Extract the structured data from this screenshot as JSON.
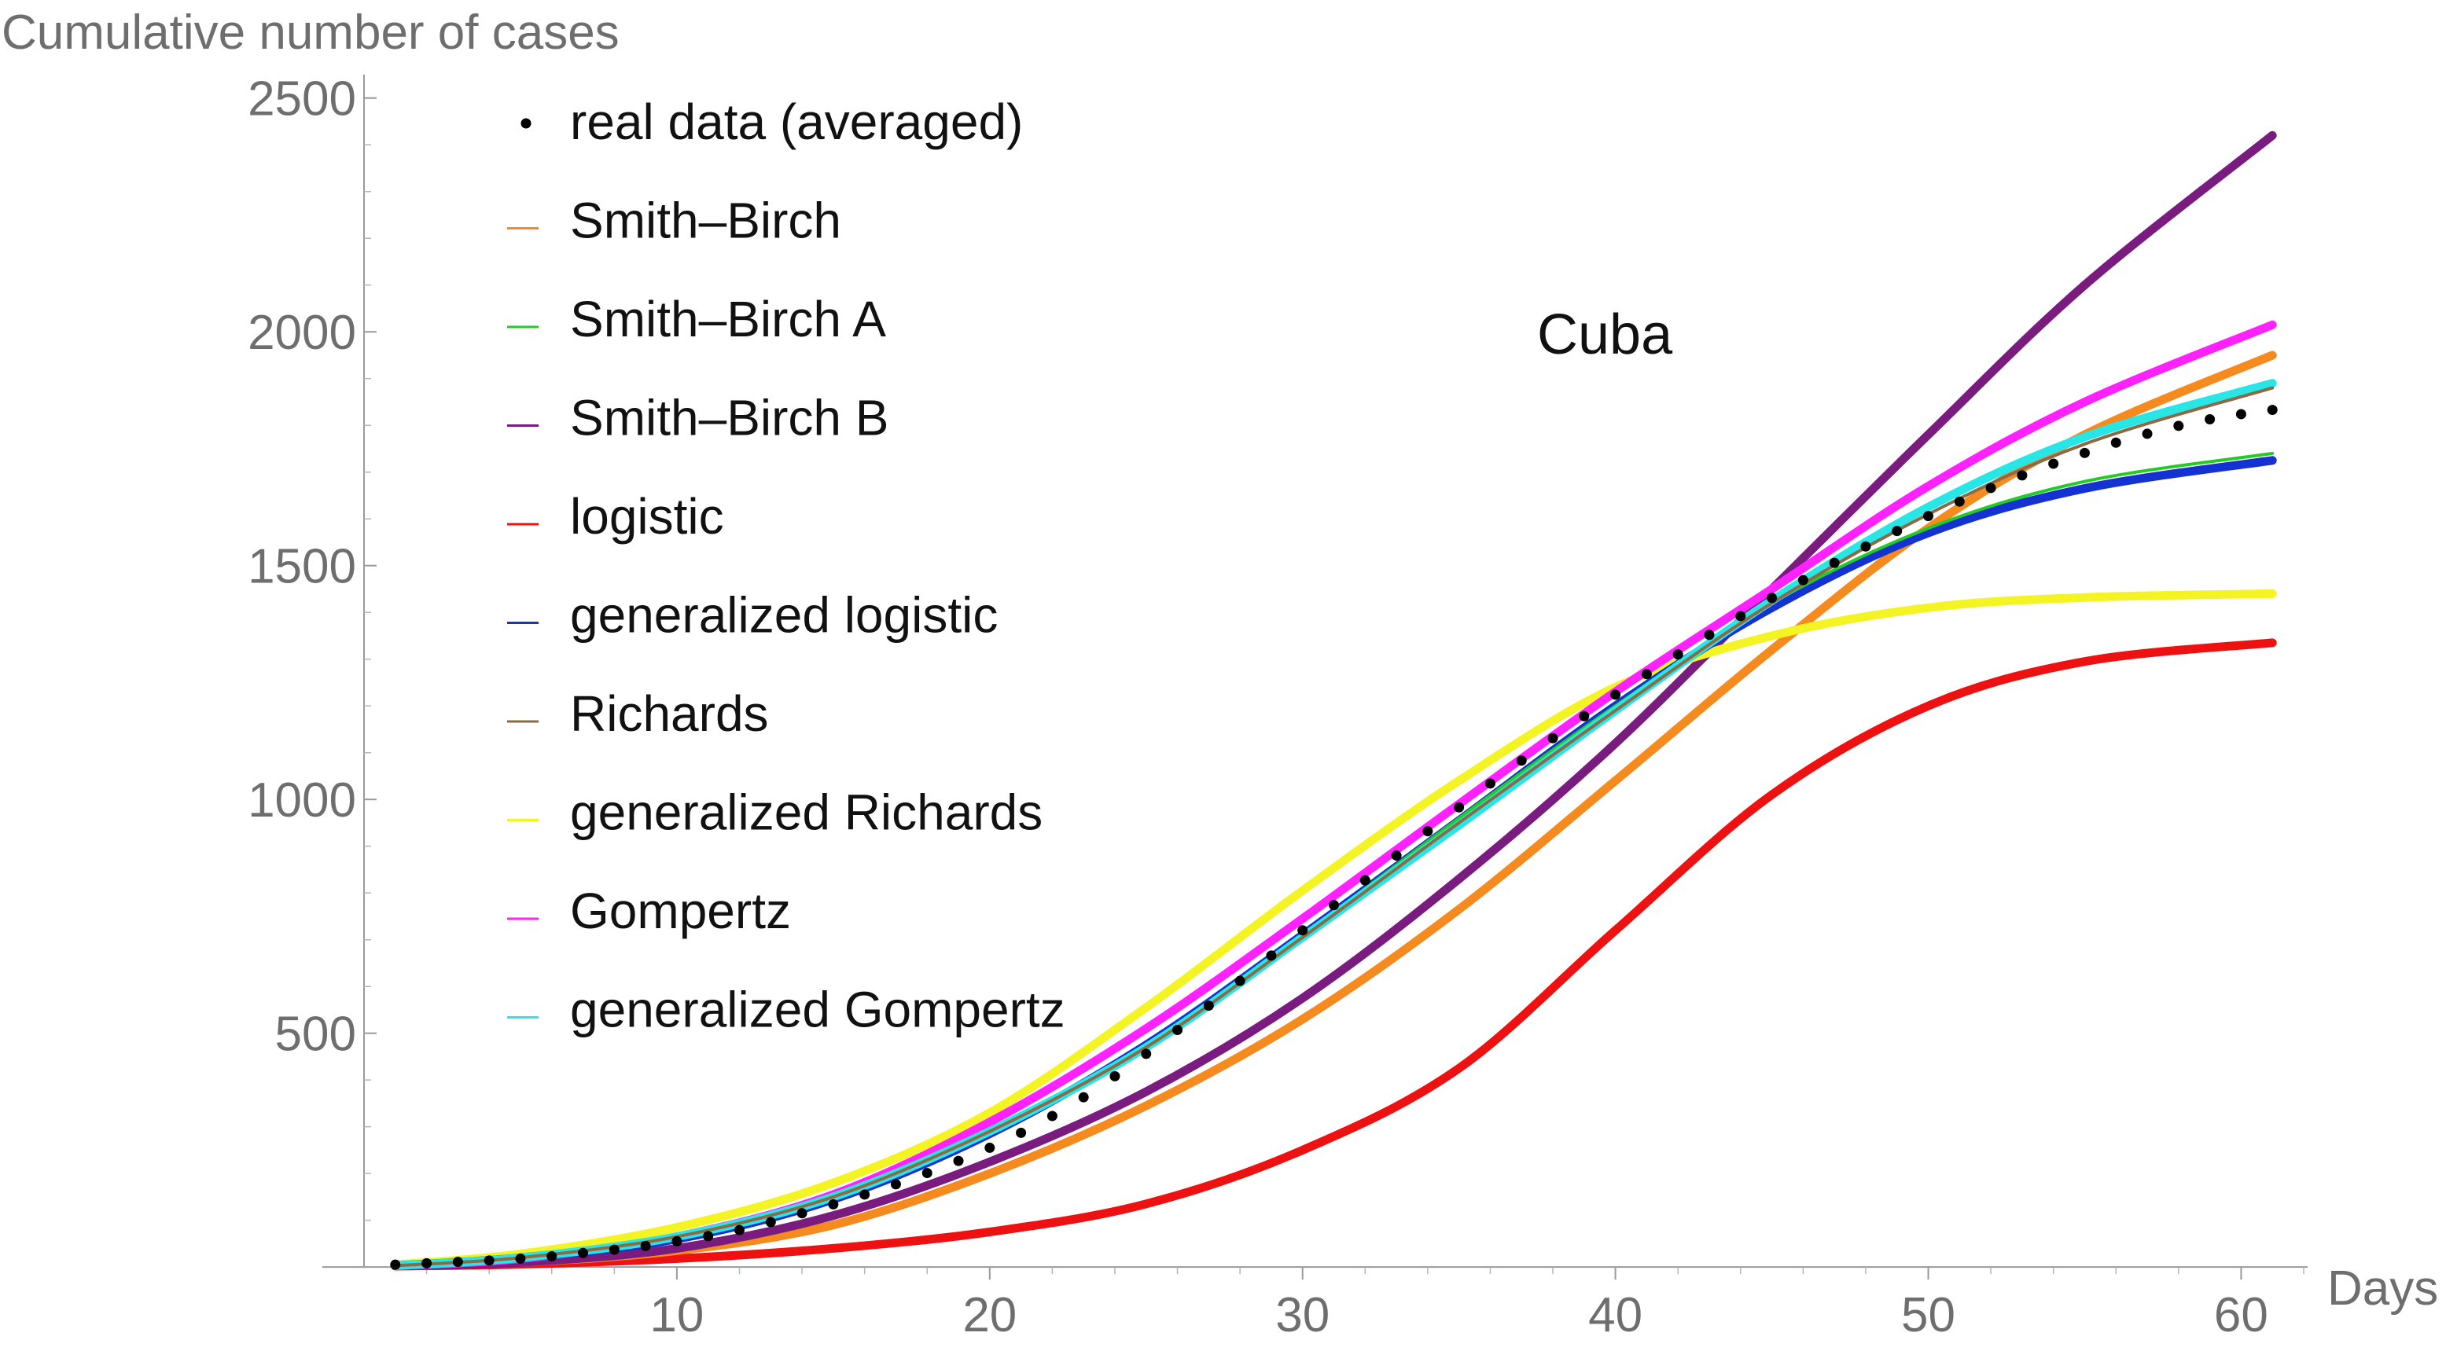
{
  "chart_data": {
    "type": "line",
    "title": "",
    "xlabel": "Days",
    "ylabel": "Cumulative number of cases",
    "annotation": "Cuba",
    "xlim": [
      0,
      62
    ],
    "ylim": [
      -30,
      2550
    ],
    "legend_position": "top-left",
    "x_ticks": [
      10,
      20,
      30,
      40,
      50,
      60
    ],
    "y_ticks": [
      500,
      1000,
      1500,
      2000,
      2500
    ],
    "grid": false,
    "colors": {
      "axis": "#9a9a9a",
      "tick_text": "#6e6e6e",
      "text": "#111111"
    },
    "data_series": {
      "name": "real data (averaged)",
      "color": "#000000",
      "x": [
        1,
        2,
        3,
        4,
        5,
        6,
        7,
        8,
        9,
        10,
        11,
        12,
        13,
        14,
        15,
        16,
        17,
        18,
        19,
        20,
        21,
        22,
        23,
        24,
        25,
        26,
        27,
        28,
        29,
        30,
        31,
        32,
        33,
        34,
        35,
        36,
        37,
        38,
        39,
        40,
        41,
        42,
        43,
        44,
        45,
        46,
        47,
        48,
        49,
        50,
        51,
        52,
        53,
        54,
        55,
        56,
        57,
        58,
        59,
        60,
        61
      ],
      "y": [
        5,
        8,
        11,
        14,
        18,
        23,
        30,
        37,
        45,
        55,
        66,
        79,
        96,
        115,
        134,
        155,
        177,
        201,
        227,
        255,
        287,
        323,
        363,
        408,
        456,
        507,
        559,
        612,
        666,
        720,
        774,
        827,
        880,
        932,
        983,
        1034,
        1083,
        1131,
        1178,
        1224,
        1268,
        1310,
        1352,
        1392,
        1431,
        1469,
        1506,
        1541,
        1574,
        1606,
        1637,
        1666,
        1693,
        1718,
        1741,
        1763,
        1782,
        1799,
        1813,
        1824,
        1833
      ]
    },
    "series": [
      {
        "name": "Smith–Birch",
        "color": "#f58a1f",
        "x": [
          1,
          5,
          10,
          15,
          20,
          25,
          30,
          35,
          40,
          45,
          50,
          55,
          61
        ],
        "y": [
          3,
          10,
          35,
          90,
          200,
          345,
          530,
          765,
          1040,
          1320,
          1580,
          1780,
          1950
        ]
      },
      {
        "name": "Smith–Birch A",
        "color": "#22cc22",
        "x": [
          1,
          5,
          10,
          15,
          20,
          25,
          30,
          35,
          40,
          45,
          50,
          55,
          61
        ],
        "y": [
          3,
          20,
          60,
          145,
          285,
          475,
          710,
          960,
          1200,
          1420,
          1580,
          1680,
          1740
        ]
      },
      {
        "name": "Smith–Birch B",
        "color": "#7a1c7f",
        "x": [
          1,
          5,
          10,
          15,
          20,
          25,
          30,
          35,
          40,
          45,
          50,
          55,
          61
        ],
        "y": [
          3,
          10,
          40,
          110,
          225,
          375,
          575,
          830,
          1120,
          1450,
          1780,
          2100,
          2420
        ]
      },
      {
        "name": "logistic",
        "color": "#ee1111",
        "x": [
          1,
          5,
          10,
          15,
          20,
          25,
          30,
          35,
          40,
          45,
          50,
          55,
          61
        ],
        "y": [
          2,
          6,
          18,
          40,
          75,
          135,
          250,
          425,
          720,
          1010,
          1200,
          1295,
          1335
        ]
      },
      {
        "name": "generalized logistic",
        "color": "#1432d2",
        "x": [
          1,
          5,
          10,
          15,
          20,
          25,
          30,
          35,
          40,
          45,
          50,
          55,
          61
        ],
        "y": [
          3,
          20,
          60,
          145,
          285,
          475,
          710,
          955,
          1200,
          1410,
          1570,
          1665,
          1725
        ]
      },
      {
        "name": "Richards",
        "color": "#8b6a45",
        "x": [
          1,
          5,
          10,
          15,
          20,
          25,
          30,
          35,
          40,
          45,
          50,
          55,
          61
        ],
        "y": [
          3,
          20,
          65,
          150,
          290,
          470,
          705,
          950,
          1190,
          1420,
          1610,
          1760,
          1880
        ]
      },
      {
        "name": "generalized Richards",
        "color": "#f4f425",
        "x": [
          1,
          5,
          10,
          15,
          20,
          25,
          30,
          35,
          40,
          45,
          50,
          55,
          61
        ],
        "y": [
          5,
          28,
          85,
          180,
          330,
          555,
          805,
          1040,
          1240,
          1350,
          1410,
          1432,
          1440
        ]
      },
      {
        "name": "Gompertz",
        "color": "#ff22ff",
        "x": [
          1,
          5,
          10,
          15,
          20,
          25,
          30,
          35,
          40,
          45,
          50,
          55,
          61
        ],
        "y": [
          3,
          18,
          65,
          155,
          310,
          510,
          745,
          990,
          1230,
          1450,
          1670,
          1850,
          2015
        ]
      },
      {
        "name": "generalized Gompertz",
        "color": "#29e6e6",
        "x": [
          1,
          5,
          10,
          15,
          20,
          25,
          30,
          35,
          40,
          45,
          50,
          55,
          61
        ],
        "y": [
          3,
          20,
          65,
          150,
          290,
          470,
          705,
          945,
          1190,
          1425,
          1625,
          1775,
          1890
        ]
      }
    ]
  }
}
